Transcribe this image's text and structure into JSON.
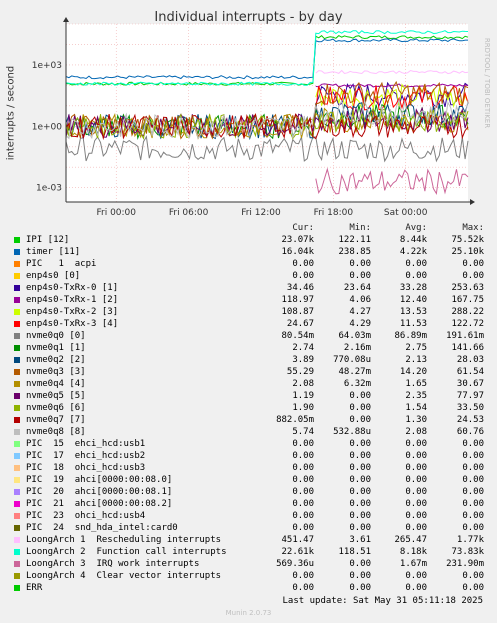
{
  "chart_data": {
    "type": "line",
    "title": "Individual interrupts - by day",
    "ylabel": "interrupts / second",
    "yscale": "log",
    "ylim": [
      0.0002,
      100000
    ],
    "yticks": [
      "1e+03",
      "1e+00",
      "1e-03"
    ],
    "xticks": [
      "Fri 00:00",
      "Fri 06:00",
      "Fri 12:00",
      "Fri 18:00",
      "Sat 00:00"
    ],
    "side_label": "RRDTOOL / TOBI OETIKER",
    "grid": true,
    "columns": [
      "Cur:",
      "Min:",
      "Avg:",
      "Max:"
    ],
    "series": [
      {
        "name": "IPI [12]",
        "color": "#00cc00",
        "cur": "23.07k",
        "min": "122.11",
        "avg": "8.44k",
        "max": "75.52k",
        "level_before": 120,
        "level_after": 23000
      },
      {
        "name": "timer [11]",
        "color": "#0066b3",
        "cur": "16.04k",
        "min": "238.85",
        "avg": "4.22k",
        "max": "25.10k",
        "level_before": 250,
        "level_after": 16000
      },
      {
        "name": "PIC   1  acpi",
        "color": "#ff8000",
        "cur": "0.00",
        "min": "0.00",
        "avg": "0.00",
        "max": "0.00",
        "level_before": 0,
        "level_after": 0
      },
      {
        "name": "enp4s0 [0]",
        "color": "#ffcc00",
        "cur": "0.00",
        "min": "0.00",
        "avg": "0.00",
        "max": "0.00",
        "level_before": 0,
        "level_after": 0
      },
      {
        "name": "enp4s0-TxRx-0 [1]",
        "color": "#330099",
        "cur": "34.46",
        "min": "23.64",
        "avg": "33.28",
        "max": "253.63",
        "level_before": 0,
        "level_after": 35
      },
      {
        "name": "enp4s0-TxRx-1 [2]",
        "color": "#990099",
        "cur": "118.97",
        "min": "4.06",
        "avg": "12.40",
        "max": "167.75",
        "level_before": 0,
        "level_after": 100
      },
      {
        "name": "enp4s0-TxRx-2 [3]",
        "color": "#ccff00",
        "cur": "108.87",
        "min": "4.27",
        "avg": "13.53",
        "max": "288.22",
        "level_before": 0,
        "level_after": 30
      },
      {
        "name": "enp4s0-TxRx-3 [4]",
        "color": "#ff0000",
        "cur": "24.67",
        "min": "4.29",
        "avg": "11.53",
        "max": "122.72",
        "level_before": 0,
        "level_after": 25
      },
      {
        "name": "nvme0q0 [0]",
        "color": "#808080",
        "cur": "80.54m",
        "min": "64.03m",
        "avg": "86.89m",
        "max": "191.61m",
        "level_before": 0.08,
        "level_after": 0.08
      },
      {
        "name": "nvme0q1 [1]",
        "color": "#008f00",
        "cur": "2.74",
        "min": "2.16m",
        "avg": "2.75",
        "max": "141.66",
        "level_before": 1,
        "level_after": 3
      },
      {
        "name": "nvme0q2 [2]",
        "color": "#00487d",
        "cur": "3.89",
        "min": "770.08u",
        "avg": "2.13",
        "max": "28.03",
        "level_before": 1,
        "level_after": 4
      },
      {
        "name": "nvme0q3 [3]",
        "color": "#b35a00",
        "cur": "55.29",
        "min": "48.27m",
        "avg": "14.20",
        "max": "61.54",
        "level_before": 1,
        "level_after": 40
      },
      {
        "name": "nvme0q4 [4]",
        "color": "#b38f00",
        "cur": "2.08",
        "min": "6.32m",
        "avg": "1.65",
        "max": "30.67",
        "level_before": 1,
        "level_after": 2
      },
      {
        "name": "nvme0q5 [5]",
        "color": "#6b006b",
        "cur": "1.19",
        "min": "0.00",
        "avg": "2.35",
        "max": "77.97",
        "level_before": 1,
        "level_after": 2
      },
      {
        "name": "nvme0q6 [6]",
        "color": "#8fb300",
        "cur": "1.90",
        "min": "0.00",
        "avg": "1.54",
        "max": "33.50",
        "level_before": 1,
        "level_after": 2
      },
      {
        "name": "nvme0q7 [7]",
        "color": "#b30000",
        "cur": "882.05m",
        "min": "0.00",
        "avg": "1.30",
        "max": "24.53",
        "level_before": 1,
        "level_after": 1
      },
      {
        "name": "nvme0q8 [8]",
        "color": "#bebebe",
        "cur": "5.74",
        "min": "532.88u",
        "avg": "2.08",
        "max": "60.76",
        "level_before": 1,
        "level_after": 5
      },
      {
        "name": "PIC  15  ehci_hcd:usb1",
        "color": "#80ff80",
        "cur": "0.00",
        "min": "0.00",
        "avg": "0.00",
        "max": "0.00",
        "level_before": 0,
        "level_after": 0
      },
      {
        "name": "PIC  17  ehci_hcd:usb2",
        "color": "#80c9ff",
        "cur": "0.00",
        "min": "0.00",
        "avg": "0.00",
        "max": "0.00",
        "level_before": 0,
        "level_after": 0
      },
      {
        "name": "PIC  18  ohci_hcd:usb3",
        "color": "#ffc080",
        "cur": "0.00",
        "min": "0.00",
        "avg": "0.00",
        "max": "0.00",
        "level_before": 0,
        "level_after": 0
      },
      {
        "name": "PIC  19  ahci[0000:00:08.0]",
        "color": "#ffe680",
        "cur": "0.00",
        "min": "0.00",
        "avg": "0.00",
        "max": "0.00",
        "level_before": 0,
        "level_after": 0
      },
      {
        "name": "PIC  20  ahci[0000:00:08.1]",
        "color": "#aa80ff",
        "cur": "0.00",
        "min": "0.00",
        "avg": "0.00",
        "max": "0.00",
        "level_before": 0,
        "level_after": 0
      },
      {
        "name": "PIC  21  ahci[0000:00:08.2]",
        "color": "#ee00cc",
        "cur": "0.00",
        "min": "0.00",
        "avg": "0.00",
        "max": "0.00",
        "level_before": 0,
        "level_after": 0
      },
      {
        "name": "PIC  23  ohci_hcd:usb4",
        "color": "#ff8080",
        "cur": "0.00",
        "min": "0.00",
        "avg": "0.00",
        "max": "0.00",
        "level_before": 0,
        "level_after": 0
      },
      {
        "name": "PIC  24  snd_hda_intel:card0",
        "color": "#666600",
        "cur": "0.00",
        "min": "0.00",
        "avg": "0.00",
        "max": "0.00",
        "level_before": 0,
        "level_after": 0
      },
      {
        "name": "LoongArch 1  Rescheduling interrupts",
        "color": "#ffbfff",
        "cur": "451.47",
        "min": "3.61",
        "avg": "265.47",
        "max": "1.77k",
        "level_before": 0,
        "level_after": 450
      },
      {
        "name": "LoongArch 2  Function call interrupts",
        "color": "#00ffcc",
        "cur": "22.61k",
        "min": "118.51",
        "avg": "8.18k",
        "max": "73.83k",
        "level_before": 120,
        "level_after": 40000
      },
      {
        "name": "LoongArch 3  IRQ work interrupts",
        "color": "#cc6699",
        "cur": "569.36u",
        "min": "0.00",
        "avg": "1.67m",
        "max": "231.90m",
        "level_before": 0,
        "level_after": 0.002
      },
      {
        "name": "LoongArch 4  Clear vector interrupts",
        "color": "#999900",
        "cur": "0.00",
        "min": "0.00",
        "avg": "0.00",
        "max": "0.00",
        "level_before": 0,
        "level_after": 0
      },
      {
        "name": "ERR",
        "color": "#00cc00",
        "cur": "0.00",
        "min": "0.00",
        "avg": "0.00",
        "max": "0.00",
        "level_before": 0,
        "level_after": 0
      }
    ]
  },
  "footer": {
    "last_update": "Last update: Sat May 31 05:11:18 2025",
    "version": "Munin 2.0.73"
  }
}
